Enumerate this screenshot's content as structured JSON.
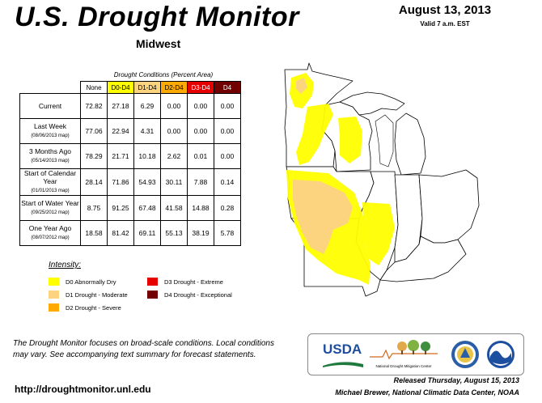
{
  "header": {
    "title": "U.S. Drought Monitor",
    "region": "Midwest",
    "date": "August 13, 2013",
    "valid": "Valid 7 a.m. EST"
  },
  "table": {
    "caption": "Drought Conditions (Percent Area)",
    "columns": [
      "None",
      "D0-D4",
      "D1-D4",
      "D2-D4",
      "D3-D4",
      "D4"
    ],
    "column_colors": [
      "#ffffff",
      "#ffff00",
      "#fcd37f",
      "#ffaa00",
      "#e60000",
      "#730000"
    ],
    "rows": [
      {
        "label": "Current",
        "sub": "",
        "values": [
          "72.82",
          "27.18",
          "6.29",
          "0.00",
          "0.00",
          "0.00"
        ]
      },
      {
        "label": "Last Week",
        "sub": "(08/06/2013 map)",
        "values": [
          "77.06",
          "22.94",
          "4.31",
          "0.00",
          "0.00",
          "0.00"
        ]
      },
      {
        "label": "3 Months Ago",
        "sub": "(05/14/2013 map)",
        "values": [
          "78.29",
          "21.71",
          "10.18",
          "2.62",
          "0.01",
          "0.00"
        ]
      },
      {
        "label": "Start of Calendar Year",
        "sub": "(01/01/2013 map)",
        "values": [
          "28.14",
          "71.86",
          "54.93",
          "30.11",
          "7.88",
          "0.14"
        ]
      },
      {
        "label": "Start of Water Year",
        "sub": "(09/25/2012 map)",
        "values": [
          "8.75",
          "91.25",
          "67.48",
          "41.58",
          "14.88",
          "0.28"
        ]
      },
      {
        "label": "One Year Ago",
        "sub": "(08/07/2012 map)",
        "values": [
          "18.58",
          "81.42",
          "69.11",
          "55.13",
          "38.19",
          "5.78"
        ]
      }
    ]
  },
  "legend": {
    "title": "Intensity:",
    "items": [
      {
        "label": "D0 Abnormally Dry",
        "color": "#ffff00"
      },
      {
        "label": "D1 Drought - Moderate",
        "color": "#fcd37f"
      },
      {
        "label": "D2 Drought - Severe",
        "color": "#ffaa00"
      },
      {
        "label": "D3 Drought - Extreme",
        "color": "#e60000"
      },
      {
        "label": "D4 Drought - Exceptional",
        "color": "#730000"
      }
    ]
  },
  "footer": {
    "blurb": "The Drought Monitor focuses on broad-scale conditions. Local conditions may vary. See accompanying text summary for forecast statements.",
    "url": "http://droughtmonitor.unl.edu",
    "released": "Released Thursday, August 15, 2013",
    "author": "Michael Brewer, National Climatic Data Center, NOAA"
  },
  "logos": {
    "usda": "USDA",
    "ndmc": "National Drought Mitigation Center"
  }
}
